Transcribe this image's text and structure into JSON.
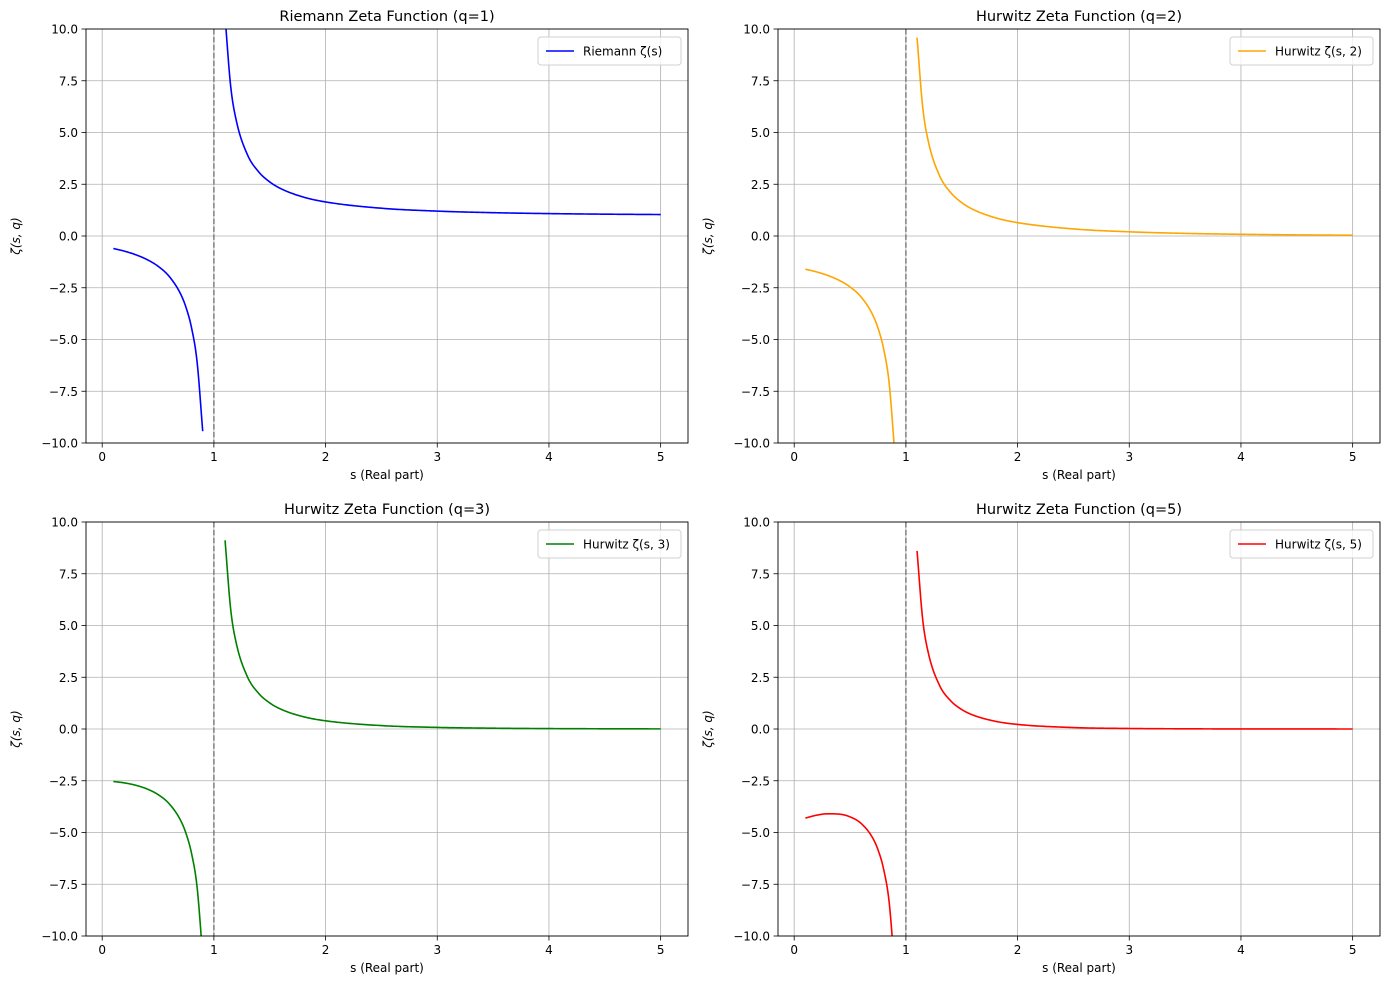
{
  "chart_data": [
    {
      "type": "line",
      "title": "Riemann Zeta Function (q=1)",
      "xlabel": "s (Real part)",
      "ylabel": "ζ(s, q)",
      "xlim": [
        -0.145,
        5.245
      ],
      "ylim": [
        -10,
        10
      ],
      "xticks": [
        "0",
        "1",
        "2",
        "3",
        "4",
        "5"
      ],
      "yticks": [
        "−10.0",
        "−7.5",
        "−5.0",
        "−2.5",
        "0.0",
        "2.5",
        "5.0",
        "7.5",
        "10.0"
      ],
      "grid": true,
      "legend_position": "top-right",
      "vline": {
        "x": 1,
        "style": "dashed",
        "color": "#808080"
      },
      "series": [
        {
          "name": "Riemann ζ(s)",
          "color": "#0000ff",
          "branches": [
            {
              "x": [
                0.1,
                0.2,
                0.3,
                0.4,
                0.5,
                0.6,
                0.7,
                0.75,
                0.8,
                0.85,
                0.9
              ],
              "y": [
                -0.603,
                -0.7339,
                -0.9046,
                -1.1347,
                -1.4604,
                -1.9526,
                -2.7783,
                -3.4428,
                -4.4375,
                -6.1,
                -9.4302
              ]
            },
            {
              "x": [
                1.1,
                1.15,
                1.2,
                1.3,
                1.4,
                1.5,
                1.6,
                1.8,
                2,
                2.5,
                3,
                3.5,
                4,
                4.5,
                5
              ],
              "y": [
                10.5844,
                7.255,
                5.5916,
                3.9319,
                3.1055,
                2.6124,
                2.2858,
                1.8822,
                1.6449,
                1.3415,
                1.2021,
                1.1267,
                1.0823,
                1.0547,
                1.0369
              ]
            }
          ]
        }
      ]
    },
    {
      "type": "line",
      "title": "Hurwitz Zeta Function (q=2)",
      "xlabel": "s (Real part)",
      "ylabel": "ζ(s, q)",
      "xlim": [
        -0.145,
        5.245
      ],
      "ylim": [
        -10,
        10
      ],
      "xticks": [
        "0",
        "1",
        "2",
        "3",
        "4",
        "5"
      ],
      "yticks": [
        "−10.0",
        "−7.5",
        "−5.0",
        "−2.5",
        "0.0",
        "2.5",
        "5.0",
        "7.5",
        "10.0"
      ],
      "grid": true,
      "legend_position": "top-right",
      "vline": {
        "x": 1,
        "style": "dashed",
        "color": "#808080"
      },
      "series": [
        {
          "name": "Hurwitz ζ(s, 2)",
          "color": "#ffa500",
          "branches": [
            {
              "x": [
                0.1,
                0.2,
                0.3,
                0.4,
                0.5,
                0.6,
                0.7,
                0.75,
                0.8,
                0.85,
                0.9
              ],
              "y": [
                -1.603,
                -1.7339,
                -1.9046,
                -2.1347,
                -2.4604,
                -2.9526,
                -3.7783,
                -4.4428,
                -5.4375,
                -7.1,
                -10.4302
              ]
            },
            {
              "x": [
                1.1,
                1.15,
                1.2,
                1.3,
                1.4,
                1.5,
                1.6,
                1.8,
                2,
                2.5,
                3,
                3.5,
                4,
                4.5,
                5
              ],
              "y": [
                9.5844,
                6.255,
                4.5916,
                2.9319,
                2.1055,
                1.6124,
                1.2858,
                0.8822,
                0.6449,
                0.3415,
                0.2021,
                0.1267,
                0.0823,
                0.0547,
                0.0369
              ]
            }
          ]
        }
      ]
    },
    {
      "type": "line",
      "title": "Hurwitz Zeta Function (q=3)",
      "xlabel": "s (Real part)",
      "ylabel": "ζ(s, q)",
      "xlim": [
        -0.145,
        5.245
      ],
      "ylim": [
        -10,
        10
      ],
      "xticks": [
        "0",
        "1",
        "2",
        "3",
        "4",
        "5"
      ],
      "yticks": [
        "−10.0",
        "−7.5",
        "−5.0",
        "−2.5",
        "0.0",
        "2.5",
        "5.0",
        "7.5",
        "10.0"
      ],
      "grid": true,
      "legend_position": "top-right",
      "vline": {
        "x": 1,
        "style": "dashed",
        "color": "#808080"
      },
      "series": [
        {
          "name": "Hurwitz ζ(s, 3)",
          "color": "#008000",
          "branches": [
            {
              "x": [
                0.1,
                0.2,
                0.3,
                0.4,
                0.5,
                0.6,
                0.7,
                0.75,
                0.8,
                0.85,
                0.9
              ],
              "y": [
                -2.536,
                -2.6045,
                -2.7169,
                -2.8926,
                -3.1675,
                -3.6124,
                -4.3939,
                -5.0374,
                -6.0118,
                -7.655,
                -10.966
              ]
            },
            {
              "x": [
                1.1,
                1.15,
                1.2,
                1.3,
                1.4,
                1.5,
                1.6,
                1.8,
                2,
                2.5,
                3,
                3.5,
                4,
                4.5,
                5
              ],
              "y": [
                9.118,
                5.804,
                4.156,
                2.526,
                1.727,
                1.259,
                0.956,
                0.595,
                0.3949,
                0.1647,
                0.0771,
                0.0383,
                0.0198,
                0.0105,
                0.0056
              ]
            }
          ]
        }
      ]
    },
    {
      "type": "line",
      "title": "Hurwitz Zeta Function (q=5)",
      "xlabel": "s (Real part)",
      "ylabel": "ζ(s, q)",
      "xlim": [
        -0.145,
        5.245
      ],
      "ylim": [
        -10,
        10
      ],
      "xticks": [
        "0",
        "1",
        "2",
        "3",
        "4",
        "5"
      ],
      "yticks": [
        "−10.0",
        "−7.5",
        "−5.0",
        "−2.5",
        "0.0",
        "2.5",
        "5.0",
        "7.5",
        "10.0"
      ],
      "grid": true,
      "legend_position": "top-right",
      "vline": {
        "x": 1,
        "style": "dashed",
        "color": "#808080"
      },
      "series": [
        {
          "name": "Hurwitz ζ(s, 5)",
          "color": "#ff0000",
          "branches": [
            {
              "x": [
                0.1,
                0.2,
                0.3,
                0.4,
                0.5,
                0.6,
                0.7,
                0.75,
                0.8,
                0.85,
                0.9
              ],
              "y": [
                -4.303,
                -4.165,
                -4.096,
                -4.111,
                -4.245,
                -4.565,
                -5.236,
                -5.83,
                -6.757,
                -8.356,
                -11.625
              ]
            },
            {
              "x": [
                1.1,
                1.15,
                1.2,
                1.3,
                1.4,
                1.5,
                1.6,
                1.8,
                2,
                2.5,
                3,
                3.5,
                4,
                4.5,
                5
              ],
              "y": [
                8.601,
                5.318,
                3.699,
                2.121,
                1.369,
                0.941,
                0.675,
                0.374,
                0.2213,
                0.0692,
                0.0245,
                0.0091,
                0.0036,
                0.0014,
                0.0005
              ]
            }
          ]
        }
      ]
    }
  ]
}
